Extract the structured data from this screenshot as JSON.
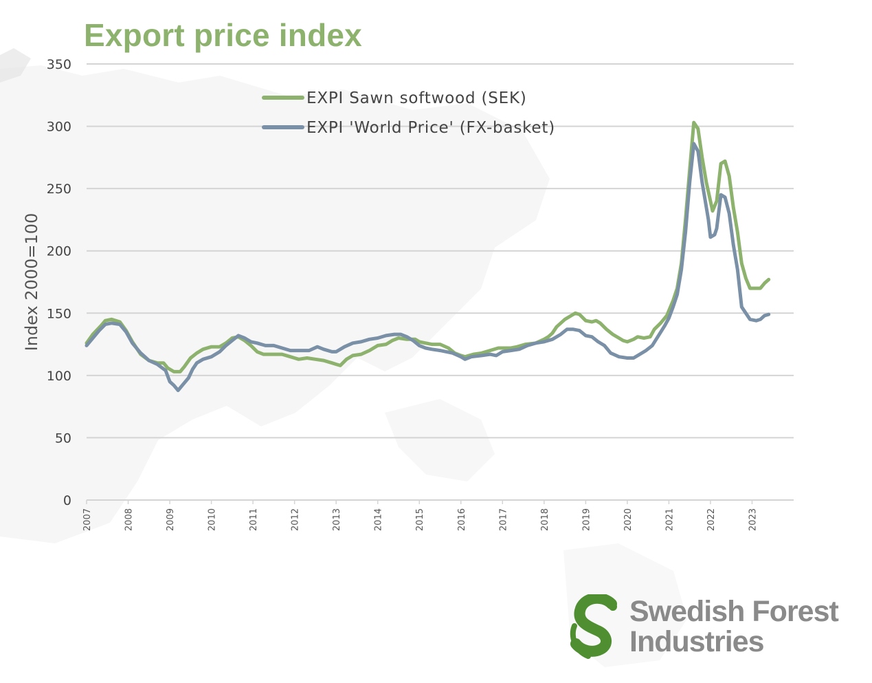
{
  "title": "Export price index",
  "chart_data": {
    "type": "line",
    "title": "",
    "ylabel": "Index 2000=100",
    "xlabel": "",
    "ylim": [
      0,
      350
    ],
    "yticks": [
      0,
      50,
      100,
      150,
      200,
      250,
      300,
      350
    ],
    "xlim": [
      2007,
      2024
    ],
    "xticks": [
      "2007",
      "2008",
      "2009",
      "2010",
      "2011",
      "2012",
      "2013",
      "2014",
      "2015",
      "2016",
      "2017",
      "2018",
      "2019",
      "2020",
      "2021",
      "2022",
      "2023"
    ],
    "grid": "horizontal",
    "legend_position": "top-center",
    "series": [
      {
        "name": "EXPI Sawn softwood (SEK)",
        "color": "#8db26d",
        "points": [
          [
            2007.0,
            126
          ],
          [
            2007.15,
            133
          ],
          [
            2007.35,
            140
          ],
          [
            2007.45,
            144
          ],
          [
            2007.6,
            145
          ],
          [
            2007.8,
            143
          ],
          [
            2007.95,
            136
          ],
          [
            2008.1,
            127
          ],
          [
            2008.3,
            117
          ],
          [
            2008.5,
            112
          ],
          [
            2008.7,
            110
          ],
          [
            2008.85,
            110
          ],
          [
            2008.95,
            106
          ],
          [
            2009.1,
            103
          ],
          [
            2009.25,
            103
          ],
          [
            2009.35,
            107
          ],
          [
            2009.5,
            114
          ],
          [
            2009.65,
            118
          ],
          [
            2009.8,
            121
          ],
          [
            2010.0,
            123
          ],
          [
            2010.2,
            123
          ],
          [
            2010.35,
            126
          ],
          [
            2010.5,
            130
          ],
          [
            2010.65,
            131
          ],
          [
            2010.8,
            128
          ],
          [
            2010.95,
            124
          ],
          [
            2011.1,
            119
          ],
          [
            2011.25,
            117
          ],
          [
            2011.5,
            117
          ],
          [
            2011.7,
            117
          ],
          [
            2011.9,
            115
          ],
          [
            2012.0,
            114
          ],
          [
            2012.1,
            113
          ],
          [
            2012.3,
            114
          ],
          [
            2012.5,
            113
          ],
          [
            2012.7,
            112
          ],
          [
            2012.9,
            110
          ],
          [
            2013.0,
            109
          ],
          [
            2013.1,
            108
          ],
          [
            2013.25,
            113
          ],
          [
            2013.4,
            116
          ],
          [
            2013.6,
            117
          ],
          [
            2013.8,
            120
          ],
          [
            2014.0,
            124
          ],
          [
            2014.2,
            125
          ],
          [
            2014.35,
            128
          ],
          [
            2014.5,
            130
          ],
          [
            2014.7,
            129
          ],
          [
            2014.9,
            129
          ],
          [
            2015.0,
            127
          ],
          [
            2015.15,
            126
          ],
          [
            2015.3,
            125
          ],
          [
            2015.5,
            125
          ],
          [
            2015.7,
            122
          ],
          [
            2015.85,
            118
          ],
          [
            2016.0,
            116
          ],
          [
            2016.1,
            115
          ],
          [
            2016.3,
            117
          ],
          [
            2016.5,
            118
          ],
          [
            2016.7,
            120
          ],
          [
            2016.9,
            122
          ],
          [
            2017.0,
            122
          ],
          [
            2017.2,
            122
          ],
          [
            2017.35,
            123
          ],
          [
            2017.55,
            125
          ],
          [
            2017.8,
            126
          ],
          [
            2018.0,
            129
          ],
          [
            2018.1,
            131
          ],
          [
            2018.2,
            134
          ],
          [
            2018.3,
            139
          ],
          [
            2018.5,
            145
          ],
          [
            2018.65,
            148
          ],
          [
            2018.75,
            150
          ],
          [
            2018.85,
            149
          ],
          [
            2019.0,
            144
          ],
          [
            2019.15,
            143
          ],
          [
            2019.25,
            144
          ],
          [
            2019.35,
            142
          ],
          [
            2019.5,
            137
          ],
          [
            2019.65,
            133
          ],
          [
            2019.8,
            130
          ],
          [
            2019.9,
            128
          ],
          [
            2020.0,
            127
          ],
          [
            2020.15,
            129
          ],
          [
            2020.25,
            131
          ],
          [
            2020.4,
            130
          ],
          [
            2020.55,
            131
          ],
          [
            2020.65,
            137
          ],
          [
            2020.8,
            142
          ],
          [
            2020.95,
            148
          ],
          [
            2021.0,
            152
          ],
          [
            2021.1,
            160
          ],
          [
            2021.2,
            170
          ],
          [
            2021.3,
            190
          ],
          [
            2021.4,
            225
          ],
          [
            2021.5,
            265
          ],
          [
            2021.6,
            303
          ],
          [
            2021.7,
            298
          ],
          [
            2021.8,
            275
          ],
          [
            2021.9,
            255
          ],
          [
            2022.0,
            240
          ],
          [
            2022.05,
            232
          ],
          [
            2022.15,
            240
          ],
          [
            2022.25,
            270
          ],
          [
            2022.35,
            272
          ],
          [
            2022.45,
            260
          ],
          [
            2022.55,
            235
          ],
          [
            2022.65,
            215
          ],
          [
            2022.75,
            190
          ],
          [
            2022.85,
            178
          ],
          [
            2022.95,
            170
          ],
          [
            2023.1,
            170
          ],
          [
            2023.2,
            170
          ],
          [
            2023.3,
            174
          ],
          [
            2023.4,
            177
          ]
        ]
      },
      {
        "name": "EXPI 'World Price' (FX-basket)",
        "color": "#7a90a6",
        "points": [
          [
            2007.0,
            124
          ],
          [
            2007.15,
            130
          ],
          [
            2007.3,
            136
          ],
          [
            2007.45,
            141
          ],
          [
            2007.6,
            142
          ],
          [
            2007.8,
            141
          ],
          [
            2007.95,
            135
          ],
          [
            2008.1,
            126
          ],
          [
            2008.3,
            118
          ],
          [
            2008.5,
            112
          ],
          [
            2008.7,
            109
          ],
          [
            2008.9,
            104
          ],
          [
            2009.0,
            95
          ],
          [
            2009.1,
            92
          ],
          [
            2009.2,
            88
          ],
          [
            2009.3,
            92
          ],
          [
            2009.45,
            98
          ],
          [
            2009.55,
            105
          ],
          [
            2009.65,
            110
          ],
          [
            2009.8,
            113
          ],
          [
            2010.0,
            115
          ],
          [
            2010.2,
            119
          ],
          [
            2010.35,
            124
          ],
          [
            2010.5,
            128
          ],
          [
            2010.65,
            132
          ],
          [
            2010.8,
            130
          ],
          [
            2010.95,
            127
          ],
          [
            2011.1,
            126
          ],
          [
            2011.3,
            124
          ],
          [
            2011.5,
            124
          ],
          [
            2011.7,
            122
          ],
          [
            2011.9,
            120
          ],
          [
            2012.0,
            120
          ],
          [
            2012.2,
            120
          ],
          [
            2012.35,
            120
          ],
          [
            2012.55,
            123
          ],
          [
            2012.7,
            121
          ],
          [
            2012.9,
            119
          ],
          [
            2013.0,
            119
          ],
          [
            2013.2,
            123
          ],
          [
            2013.4,
            126
          ],
          [
            2013.6,
            127
          ],
          [
            2013.8,
            129
          ],
          [
            2014.0,
            130
          ],
          [
            2014.2,
            132
          ],
          [
            2014.4,
            133
          ],
          [
            2014.55,
            133
          ],
          [
            2014.7,
            131
          ],
          [
            2014.85,
            128
          ],
          [
            2015.0,
            124
          ],
          [
            2015.15,
            122
          ],
          [
            2015.3,
            121
          ],
          [
            2015.5,
            120
          ],
          [
            2015.65,
            119
          ],
          [
            2015.8,
            118
          ],
          [
            2016.0,
            115
          ],
          [
            2016.1,
            113
          ],
          [
            2016.25,
            115
          ],
          [
            2016.5,
            116
          ],
          [
            2016.7,
            117
          ],
          [
            2016.85,
            116
          ],
          [
            2017.0,
            119
          ],
          [
            2017.2,
            120
          ],
          [
            2017.4,
            121
          ],
          [
            2017.6,
            124
          ],
          [
            2017.8,
            126
          ],
          [
            2018.0,
            127
          ],
          [
            2018.2,
            129
          ],
          [
            2018.4,
            133
          ],
          [
            2018.55,
            137
          ],
          [
            2018.7,
            137
          ],
          [
            2018.85,
            136
          ],
          [
            2019.0,
            132
          ],
          [
            2019.15,
            131
          ],
          [
            2019.3,
            127
          ],
          [
            2019.45,
            124
          ],
          [
            2019.6,
            118
          ],
          [
            2019.8,
            115
          ],
          [
            2020.0,
            114
          ],
          [
            2020.15,
            114
          ],
          [
            2020.3,
            117
          ],
          [
            2020.45,
            120
          ],
          [
            2020.6,
            124
          ],
          [
            2020.75,
            132
          ],
          [
            2020.9,
            140
          ],
          [
            2021.0,
            146
          ],
          [
            2021.1,
            155
          ],
          [
            2021.2,
            165
          ],
          [
            2021.3,
            185
          ],
          [
            2021.4,
            215
          ],
          [
            2021.5,
            255
          ],
          [
            2021.6,
            286
          ],
          [
            2021.7,
            280
          ],
          [
            2021.8,
            255
          ],
          [
            2021.9,
            235
          ],
          [
            2021.95,
            225
          ],
          [
            2022.0,
            211
          ],
          [
            2022.1,
            213
          ],
          [
            2022.15,
            218
          ],
          [
            2022.25,
            245
          ],
          [
            2022.35,
            243
          ],
          [
            2022.45,
            230
          ],
          [
            2022.55,
            205
          ],
          [
            2022.65,
            185
          ],
          [
            2022.75,
            155
          ],
          [
            2022.85,
            150
          ],
          [
            2022.95,
            145
          ],
          [
            2023.1,
            144
          ],
          [
            2023.2,
            145
          ],
          [
            2023.3,
            148
          ],
          [
            2023.4,
            149
          ]
        ]
      }
    ]
  },
  "logo": {
    "line1": "Swedish Forest",
    "line2": "Industries",
    "color_green": "#4f8f32",
    "color_gray": "#8a8a8a"
  }
}
